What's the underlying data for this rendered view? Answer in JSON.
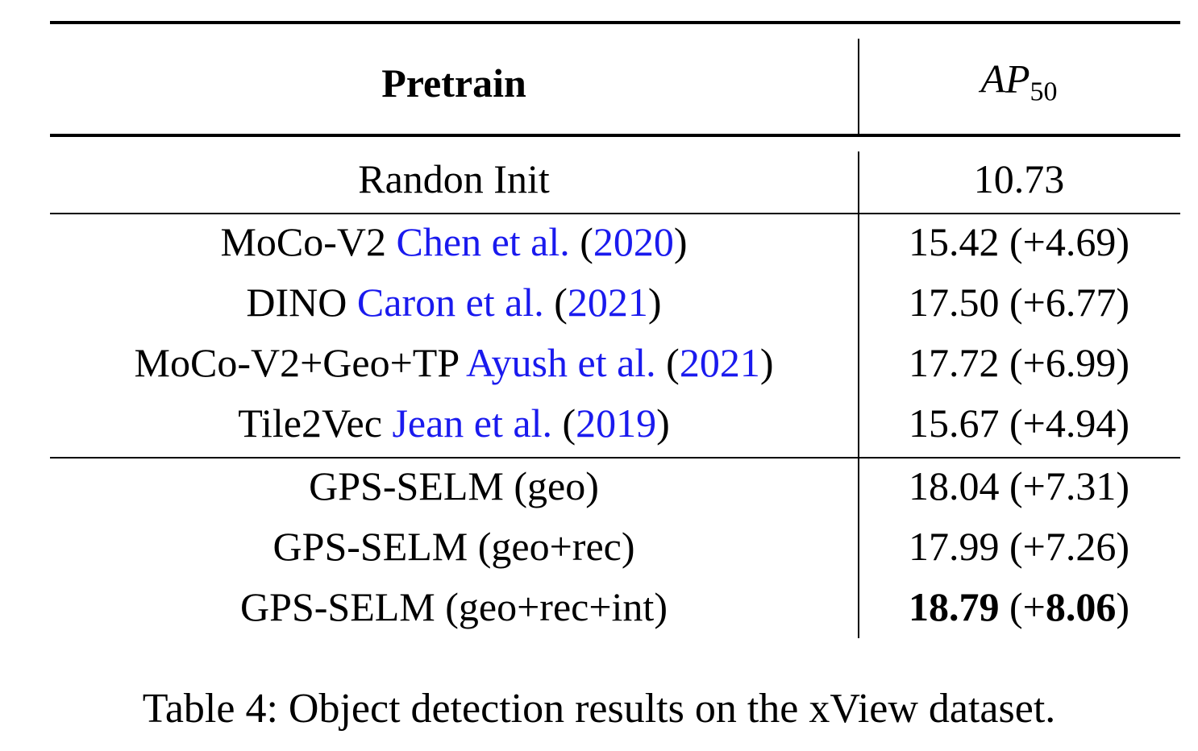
{
  "table": {
    "header": {
      "pretrain": "Pretrain",
      "metric": {
        "base": "AP",
        "subscript": "50"
      }
    },
    "sections": [
      [
        {
          "pretrain": {
            "name": "Randon Init"
          },
          "result": {
            "value": "10.73"
          }
        }
      ],
      [
        {
          "pretrain": {
            "name": "MoCo-V2",
            "citation": {
              "authors": "Chen et al.",
              "open": "(",
              "year": "2020",
              "close": ")"
            }
          },
          "result": {
            "value": "15.42",
            "open": "(",
            "sign": "+",
            "delta": "4.69",
            "close": ")"
          }
        },
        {
          "pretrain": {
            "name": "DINO",
            "citation": {
              "authors": "Caron et al.",
              "open": "(",
              "year": "2021",
              "close": ")"
            }
          },
          "result": {
            "value": "17.50",
            "open": "(",
            "sign": "+",
            "delta": "6.77",
            "close": ")"
          }
        },
        {
          "pretrain": {
            "name": "MoCo-V2+Geo+TP",
            "citation": {
              "authors": "Ayush et al.",
              "open": "(",
              "year": "2021",
              "close": ")"
            }
          },
          "result": {
            "value": "17.72",
            "open": "(",
            "sign": "+",
            "delta": "6.99",
            "close": ")"
          }
        },
        {
          "pretrain": {
            "name": "Tile2Vec",
            "citation": {
              "authors": "Jean et al.",
              "open": "(",
              "year": "2019",
              "close": ")"
            }
          },
          "result": {
            "value": "15.67",
            "open": "(",
            "sign": "+",
            "delta": "4.94",
            "close": ")"
          }
        }
      ],
      [
        {
          "pretrain": {
            "name": "GPS-SELM (geo)"
          },
          "result": {
            "value": "18.04",
            "open": "(",
            "sign": "+",
            "delta": "7.31",
            "close": ")"
          }
        },
        {
          "pretrain": {
            "name": "GPS-SELM (geo+rec)"
          },
          "result": {
            "value": "17.99",
            "open": "(",
            "sign": "+",
            "delta": "7.26",
            "close": ")"
          }
        },
        {
          "pretrain": {
            "name": "GPS-SELM (geo+rec+int)"
          },
          "result": {
            "value": "18.79",
            "open": "(",
            "sign": "+",
            "delta": "8.06",
            "close": ")",
            "bold": true
          }
        }
      ]
    ]
  },
  "caption": "Table 4: Object detection results on the xView dataset."
}
